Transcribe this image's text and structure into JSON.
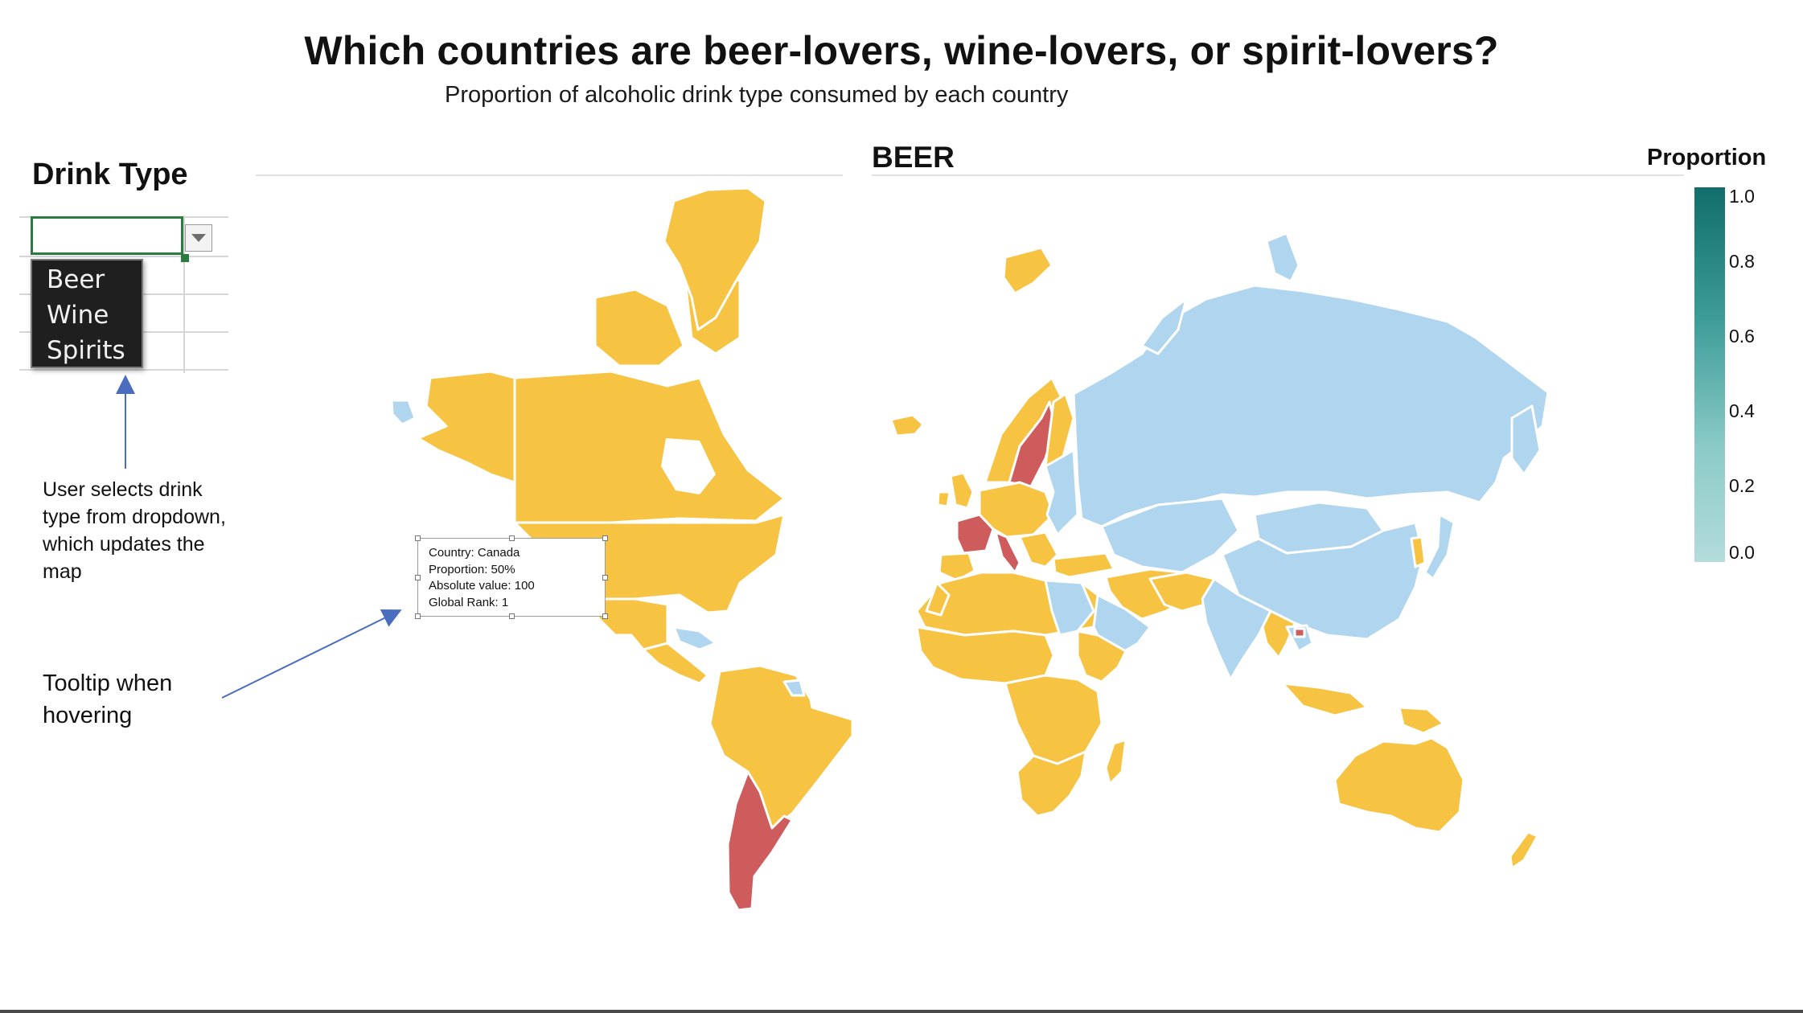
{
  "page": {
    "title": "Which countries are beer-lovers, wine-lovers, or spirit-lovers?",
    "subtitle": "Proportion of alcoholic drink type consumed  by each country"
  },
  "controls": {
    "drink_type_label": "Drink Type",
    "dropdown_value": "",
    "dropdown_options": [
      "Beer",
      "Wine",
      "Spirits"
    ]
  },
  "annotations": {
    "dropdown_note": "User selects drink type from dropdown, which updates the map",
    "tooltip_note": "Tooltip when hovering"
  },
  "map": {
    "title": "BEER",
    "colors": {
      "beer_majority": "#f6c343",
      "wine_majority": "#cf5c5c",
      "spirits_majority": "#afd5ef",
      "background": "#ffffff"
    }
  },
  "tooltip": {
    "country": "Country: Canada",
    "proportion": "Proportion: 50%",
    "absolute": "Absolute value: 100",
    "rank": "Global Rank: 1"
  },
  "legend": {
    "title": "Proportion",
    "ticks": [
      "1.0",
      "0.8",
      "0.6",
      "0.4",
      "0.2",
      "0.0"
    ],
    "color_max": "#116e6a",
    "color_min": "#b3dcdb"
  }
}
